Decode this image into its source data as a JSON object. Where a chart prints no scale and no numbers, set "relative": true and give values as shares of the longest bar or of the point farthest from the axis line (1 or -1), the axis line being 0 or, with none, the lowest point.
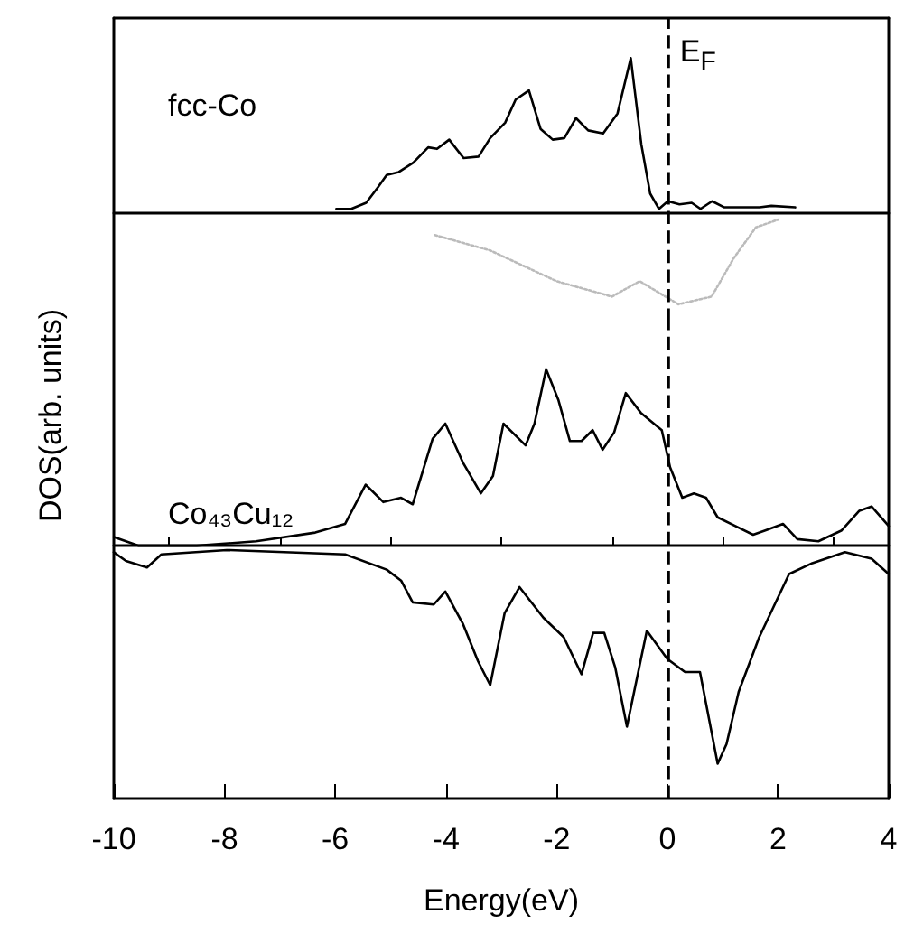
{
  "chart_data": [
    {
      "type": "line",
      "relative": true,
      "annotations": [
        "fcc-Co"
      ],
      "xlim": [
        -10,
        4
      ],
      "xticks": [
        -10,
        -8,
        -6,
        -4,
        -2,
        0,
        2,
        4
      ],
      "tick_labels": false,
      "marker": "none",
      "ref_lines": [
        {
          "axis": "x",
          "value": 0,
          "label": "E$_{F}$",
          "line_style": "dashed",
          "color": "#000000"
        }
      ],
      "series": [
        {
          "color": "#000000",
          "line_style": "solid",
          "x": [
            -5.98,
            -5.71,
            -5.44,
            -5.23,
            -5.07,
            -4.85,
            -4.59,
            -4.32,
            -4.16,
            -3.94,
            -3.68,
            -3.41,
            -3.2,
            -2.93,
            -2.74,
            -2.5,
            -2.29,
            -2.07,
            -1.86,
            -1.65,
            -1.43,
            -1.16,
            -0.9,
            -0.66,
            -0.47,
            -0.31,
            -0.15,
            0.01,
            0.22,
            0.44,
            0.6,
            0.81,
            1.03,
            1.67,
            1.88,
            2.31
          ],
          "values": [
            0.02,
            0.02,
            0.06,
            0.16,
            0.24,
            0.26,
            0.32,
            0.42,
            0.41,
            0.47,
            0.35,
            0.36,
            0.48,
            0.58,
            0.73,
            0.79,
            0.54,
            0.47,
            0.48,
            0.61,
            0.53,
            0.51,
            0.64,
            1,
            0.44,
            0.12,
            0.02,
            0.07,
            0.05,
            0.06,
            0.02,
            0.07,
            0.03,
            0.03,
            0.04,
            0.03
          ]
        },
        {
          "color": "#bbbbbb",
          "line_style": "dotted",
          "x": [
            -4.2,
            -3.2,
            -2,
            -1,
            -0.5,
            0.2,
            0.8,
            1.2,
            1.6,
            2
          ],
          "values": [
            -0.15,
            -0.25,
            -0.45,
            -0.55,
            -0.45,
            -0.6,
            -0.55,
            -0.3,
            -0.1,
            -0.05
          ]
        }
      ]
    },
    {
      "type": "line",
      "relative": true,
      "xlabel": "Energy(eV)",
      "ylabel": "DOS(arb. units)",
      "annotations": [
        "Co₄₃Cu₁₂"
      ],
      "xlim": [
        -10,
        4
      ],
      "xticks": [
        -10,
        -8,
        -6,
        -4,
        -2,
        0,
        2,
        4
      ],
      "tick_labels": "x",
      "marker": "none",
      "ref_lines": [
        {
          "axis": "x",
          "value": 0,
          "line_style": "dashed",
          "color": "#000000"
        }
      ],
      "series": [
        {
          "color": "#000000",
          "line_style": "solid",
          "x": [
            -10,
            -9.56,
            -8.5,
            -7.43,
            -6.36,
            -5.82,
            -5.45,
            -5.13,
            -4.81,
            -4.6,
            -4.24,
            -4.01,
            -3.69,
            -3.37,
            -3.15,
            -2.96,
            -2.56,
            -2.4,
            -2.19,
            -1.97,
            -1.76,
            -1.55,
            -1.35,
            -1.17,
            -0.96,
            -0.75,
            -0.48,
            -0.1,
            0.05,
            0.27,
            0.48,
            0.7,
            0.91,
            1.23,
            1.55,
            1.77,
            2.09,
            2.35,
            2.73,
            3.15,
            3.47,
            3.69,
            4
          ],
          "values": [
            0.04,
            0,
            0,
            0.02,
            0.06,
            0.1,
            0.28,
            0.2,
            0.22,
            0.19,
            0.49,
            0.56,
            0.38,
            0.24,
            0.32,
            0.56,
            0.46,
            0.56,
            0.81,
            0.67,
            0.48,
            0.48,
            0.53,
            0.44,
            0.52,
            0.7,
            0.61,
            0.53,
            0.36,
            0.22,
            0.24,
            0.22,
            0.13,
            0.09,
            0.05,
            0.07,
            0.1,
            0.03,
            0.02,
            0.07,
            0.16,
            0.18,
            0.09
          ]
        },
        {
          "color": "#000000",
          "line_style": "solid",
          "x": [
            -10,
            -9.78,
            -9.4,
            -9.14,
            -7.96,
            -5.82,
            -5.07,
            -4.81,
            -4.6,
            -4.22,
            -4.01,
            -3.69,
            -3.42,
            -3.2,
            -2.94,
            -2.67,
            -2.24,
            -1.87,
            -1.55,
            -1.34,
            -1.14,
            -0.94,
            -0.73,
            -0.37,
            0,
            0.32,
            0.59,
            0.91,
            1.07,
            1.29,
            1.66,
            2.2,
            2.62,
            3.21,
            3.69,
            4
          ],
          "values": [
            -0.03,
            -0.07,
            -0.1,
            -0.04,
            -0.02,
            -0.04,
            -0.11,
            -0.16,
            -0.26,
            -0.27,
            -0.21,
            -0.36,
            -0.53,
            -0.64,
            -0.31,
            -0.19,
            -0.33,
            -0.42,
            -0.59,
            -0.4,
            -0.4,
            -0.56,
            -0.83,
            -0.39,
            -0.52,
            -0.58,
            -0.58,
            -1,
            -0.91,
            -0.67,
            -0.42,
            -0.13,
            -0.08,
            -0.03,
            -0.06,
            -0.13
          ]
        }
      ]
    }
  ]
}
